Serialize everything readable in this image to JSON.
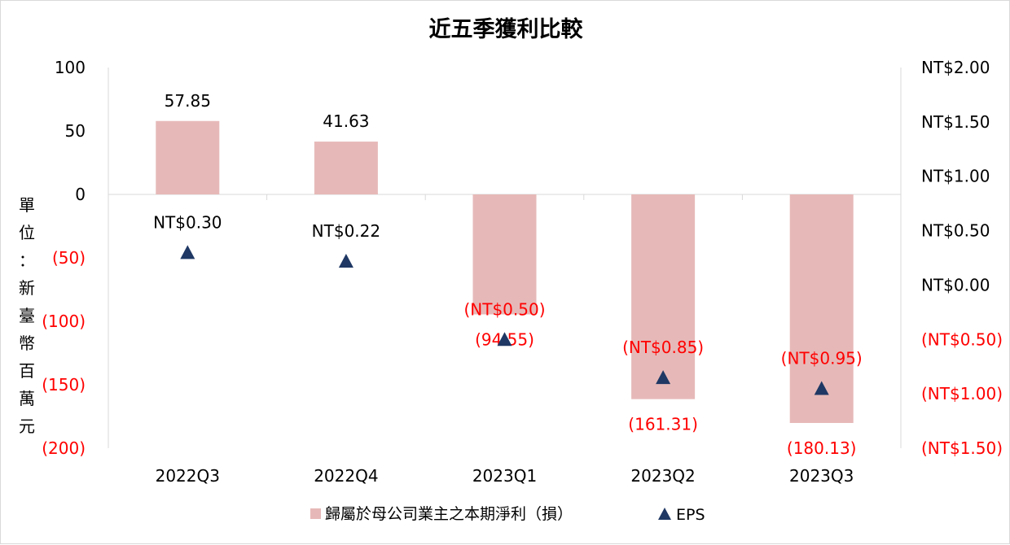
{
  "chart_data": {
    "type": "bar",
    "title": "近五季獲利比較",
    "ylabel": "單位：新臺幣百萬元",
    "categories": [
      "2022Q3",
      "2022Q4",
      "2023Q1",
      "2023Q2",
      "2023Q3"
    ],
    "ylim": [
      -200,
      100
    ],
    "y_ticks": [
      100,
      50,
      0,
      -50,
      -100,
      -150,
      -200
    ],
    "y_tick_labels": [
      "100",
      "50",
      "0",
      "(50)",
      "(100)",
      "(150)",
      "(200)"
    ],
    "y2lim": [
      -1.5,
      2.0
    ],
    "y2_ticks": [
      2.0,
      1.5,
      1.0,
      0.5,
      0.0,
      -0.5,
      -1.0,
      -1.5
    ],
    "y2_tick_labels": [
      "NT$2.00",
      "NT$1.50",
      "NT$1.00",
      "NT$0.50",
      "NT$0.00",
      "(NT$0.50)",
      "(NT$1.00)",
      "(NT$1.50)"
    ],
    "grid": false,
    "legend_position": "bottom",
    "series": [
      {
        "name": "歸屬於母公司業主之本期淨利（損）",
        "type": "bar",
        "axis": "left",
        "color": "#e6b9b8",
        "values": [
          57.85,
          41.63,
          -94.55,
          -161.31,
          -180.13
        ],
        "labels": [
          "57.85",
          "41.63",
          "(94.55)",
          "(161.31)",
          "(180.13)"
        ]
      },
      {
        "name": "EPS",
        "type": "scatter",
        "marker": "triangle",
        "axis": "right",
        "color": "#1f3864",
        "values": [
          0.3,
          0.22,
          -0.5,
          -0.85,
          -0.95
        ],
        "labels": [
          "NT$0.30",
          "NT$0.22",
          "(NT$0.50)",
          "(NT$0.85)",
          "(NT$0.95)"
        ]
      }
    ],
    "colors": {
      "positive_text": "#000000",
      "negative_text": "#ff0000",
      "axis_line": "#d9d9d9"
    }
  }
}
